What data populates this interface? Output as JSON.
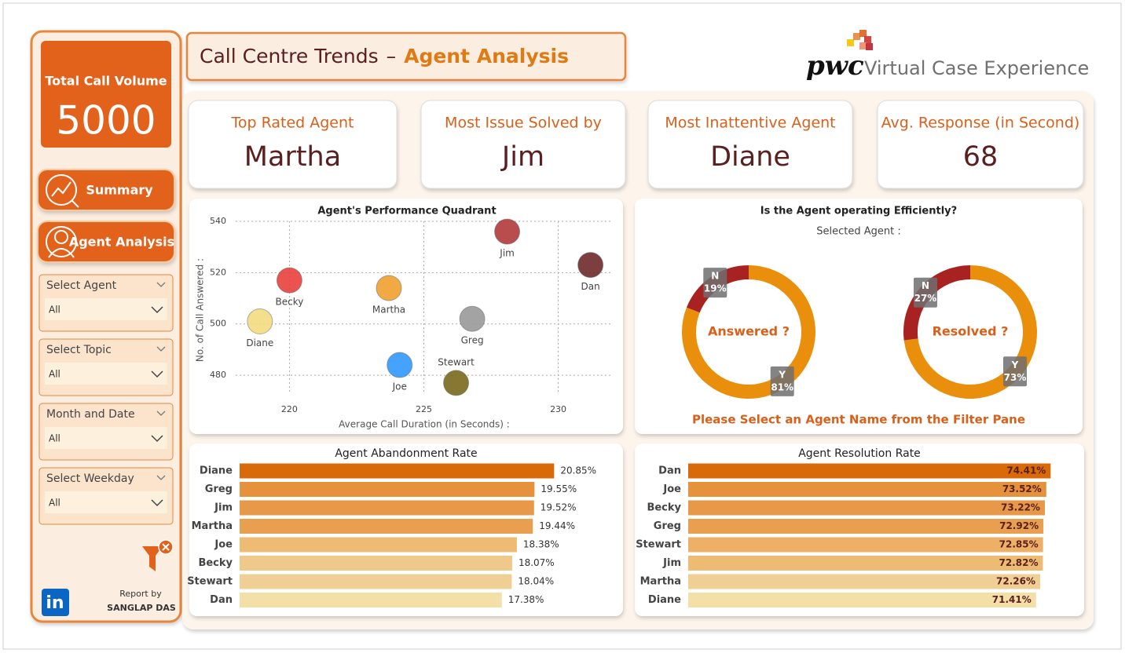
{
  "header": {
    "title": "Call Centre Trends",
    "separator": "–",
    "subtitle": "Agent Analysis",
    "brand": "pwc",
    "tagline": "Virtual Case Experience"
  },
  "sidebar": {
    "total_call_volume": {
      "label": "Total Call Volume",
      "value": 5000
    },
    "nav": [
      "Summary",
      "Agent Analysis"
    ],
    "filters": [
      {
        "label": "Select Agent",
        "value": "All"
      },
      {
        "label": "Select Topic",
        "value": "All"
      },
      {
        "label": "Month and Date",
        "value": "All"
      },
      {
        "label": "Select Weekday",
        "value": "All"
      }
    ],
    "report_by": "Report by",
    "author": "SANGLAP DAS"
  },
  "kpis": [
    {
      "label": "Top Rated Agent",
      "value": "Martha"
    },
    {
      "label": "Most Issue Solved by",
      "value": "Jim"
    },
    {
      "label": "Most Inattentive Agent",
      "value": "Diane"
    },
    {
      "label": "Avg. Response (in Second)",
      "value": 68
    }
  ],
  "quadrant": {
    "type": "scatter",
    "title": "Agent's Performance Quadrant",
    "x_label": "Average Call Duration (in Seconds) :",
    "y_label": "No. of Call Answered :",
    "xlim": [
      218,
      232
    ],
    "xticks": [
      220,
      225,
      230
    ],
    "ylim": [
      473,
      540
    ],
    "yticks": [
      480,
      500,
      520,
      540
    ],
    "grid": true,
    "points": [
      {
        "name": "Jim",
        "x": 228.1,
        "y": 536,
        "color": "#b23a3a"
      },
      {
        "name": "Dan",
        "x": 231.2,
        "y": 523,
        "color": "#6e2a2a"
      },
      {
        "name": "Becky",
        "x": 220.0,
        "y": 517,
        "color": "#e8413c"
      },
      {
        "name": "Martha",
        "x": 223.7,
        "y": 514,
        "color": "#f0a030"
      },
      {
        "name": "Diane",
        "x": 218.9,
        "y": 501,
        "color": "#f2dc80"
      },
      {
        "name": "Greg",
        "x": 226.8,
        "y": 502,
        "color": "#9a9a9a"
      },
      {
        "name": "Joe",
        "x": 224.1,
        "y": 484,
        "color": "#3399ff"
      },
      {
        "name": "Stewart",
        "x": 226.2,
        "y": 477,
        "color": "#7a6a1e"
      }
    ]
  },
  "efficiency": {
    "type": "donut",
    "title": "Is the Agent operating Efficiently?",
    "subtitle": "Selected Agent :",
    "note": "Please Select an Agent Name from the Filter Pane",
    "charts": [
      {
        "title": "Answered ?",
        "names": [
          "Y",
          "N"
        ],
        "values": [
          81,
          19
        ],
        "value_labels": [
          "81%",
          "19%"
        ],
        "colors": [
          "#e98f0c",
          "#a82222"
        ]
      },
      {
        "title": "Resolved ?",
        "names": [
          "Y",
          "N"
        ],
        "values": [
          73,
          27
        ],
        "value_labels": [
          "73%",
          "27%"
        ],
        "colors": [
          "#e98f0c",
          "#a82222"
        ]
      }
    ]
  },
  "abandonment": {
    "type": "bar",
    "title": "Agent Abandonment Rate",
    "xlim": [
      0,
      25
    ],
    "categories": [
      "Diane",
      "Greg",
      "Jim",
      "Martha",
      "Joe",
      "Becky",
      "Stewart",
      "Dan"
    ],
    "values": [
      20.85,
      19.55,
      19.52,
      19.44,
      18.38,
      18.07,
      18.04,
      17.38
    ],
    "value_labels": [
      "20.85%",
      "19.55%",
      "19.52%",
      "19.44%",
      "18.38%",
      "18.07%",
      "18.04%",
      "17.38%"
    ],
    "colors": [
      "#d96a0a",
      "#e6913c",
      "#e79848",
      "#e99f50",
      "#edbb72",
      "#efc98a",
      "#f0cf95",
      "#f3dfa8"
    ]
  },
  "resolution": {
    "type": "bar",
    "title": "Agent Resolution Rate",
    "xlim": [
      0,
      80
    ],
    "categories": [
      "Dan",
      "Joe",
      "Becky",
      "Greg",
      "Stewart",
      "Jim",
      "Martha",
      "Diane"
    ],
    "values": [
      74.41,
      73.52,
      73.22,
      72.92,
      72.85,
      72.82,
      72.26,
      71.41
    ],
    "value_labels": [
      "74.41%",
      "73.52%",
      "73.22%",
      "72.92%",
      "72.85%",
      "72.82%",
      "72.26%",
      "71.41%"
    ],
    "colors": [
      "#d96a0a",
      "#e6913c",
      "#e79848",
      "#e99f50",
      "#edb066",
      "#edbb72",
      "#f0cf95",
      "#f3dfa8"
    ]
  }
}
